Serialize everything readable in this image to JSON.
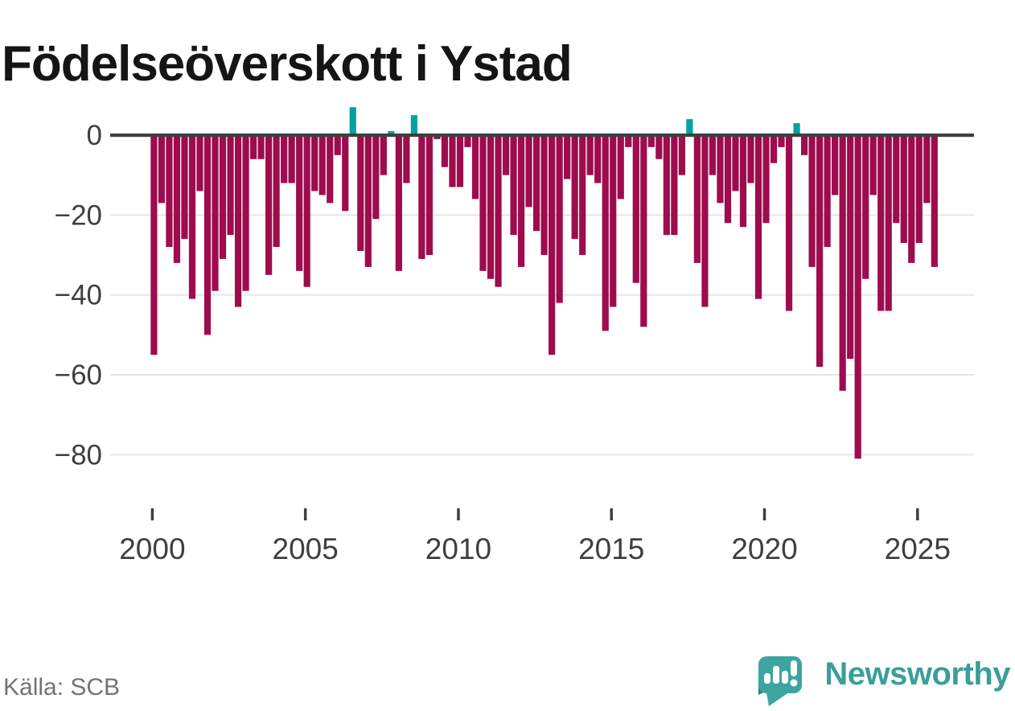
{
  "title": "Födelseöverskott i Ystad",
  "footer": {
    "source_label": "Källa: SCB"
  },
  "branding": {
    "wordmark": "Newsworthy",
    "logo_icon": "speech-bubble-barchart-icon"
  },
  "colors": {
    "negative_bar": "#9e0c4d",
    "positive_bar": "#00a2a0",
    "axis": "#3f3f3f",
    "gridline": "#e6e6e6",
    "tick_label": "#3f3f3f",
    "title_text": "#151515",
    "source_text": "#737378",
    "brand_teal": "#3a9e99",
    "brand_teal_dark": "#2e7f7b"
  },
  "chart_data": {
    "type": "bar",
    "title": "Födelseöverskott i Ystad",
    "xlabel": "",
    "ylabel": "",
    "frequency": "quarterly",
    "x_start": "2000Q1",
    "x_end": "2025Q3",
    "ylim": [
      -85,
      8
    ],
    "grid": true,
    "legend_position": "none",
    "ytick_labels": [
      "0",
      "−20",
      "−40",
      "−60",
      "−80"
    ],
    "yticks": [
      0,
      -20,
      -40,
      -60,
      -80
    ],
    "xtick_labels": [
      "2000",
      "2005",
      "2010",
      "2015",
      "2020",
      "2025"
    ],
    "xtick_years": [
      2000,
      2005,
      2010,
      2015,
      2020,
      2025
    ],
    "categories": [
      "2000Q1",
      "2000Q2",
      "2000Q3",
      "2000Q4",
      "2001Q1",
      "2001Q2",
      "2001Q3",
      "2001Q4",
      "2002Q1",
      "2002Q2",
      "2002Q3",
      "2002Q4",
      "2003Q1",
      "2003Q2",
      "2003Q3",
      "2003Q4",
      "2004Q1",
      "2004Q2",
      "2004Q3",
      "2004Q4",
      "2005Q1",
      "2005Q2",
      "2005Q3",
      "2005Q4",
      "2006Q1",
      "2006Q2",
      "2006Q3",
      "2006Q4",
      "2007Q1",
      "2007Q2",
      "2007Q3",
      "2007Q4",
      "2008Q1",
      "2008Q2",
      "2008Q3",
      "2008Q4",
      "2009Q1",
      "2009Q2",
      "2009Q3",
      "2009Q4",
      "2010Q1",
      "2010Q2",
      "2010Q3",
      "2010Q4",
      "2011Q1",
      "2011Q2",
      "2011Q3",
      "2011Q4",
      "2012Q1",
      "2012Q2",
      "2012Q3",
      "2012Q4",
      "2013Q1",
      "2013Q2",
      "2013Q3",
      "2013Q4",
      "2014Q1",
      "2014Q2",
      "2014Q3",
      "2014Q4",
      "2015Q1",
      "2015Q2",
      "2015Q3",
      "2015Q4",
      "2016Q1",
      "2016Q2",
      "2016Q3",
      "2016Q4",
      "2017Q1",
      "2017Q2",
      "2017Q3",
      "2017Q4",
      "2018Q1",
      "2018Q2",
      "2018Q3",
      "2018Q4",
      "2019Q1",
      "2019Q2",
      "2019Q3",
      "2019Q4",
      "2020Q1",
      "2020Q2",
      "2020Q3",
      "2020Q4",
      "2021Q1",
      "2021Q2",
      "2021Q3",
      "2021Q4",
      "2022Q1",
      "2022Q2",
      "2022Q3",
      "2022Q4",
      "2023Q1",
      "2023Q2",
      "2023Q3",
      "2023Q4",
      "2024Q1",
      "2024Q2",
      "2024Q3",
      "2024Q4",
      "2025Q1",
      "2025Q2",
      "2025Q3"
    ],
    "values": [
      -55,
      -17,
      -28,
      -32,
      -26,
      -41,
      -14,
      -50,
      -39,
      -31,
      -25,
      -43,
      -39,
      -6,
      -6,
      -35,
      -28,
      -12,
      -12,
      -34,
      -38,
      -14,
      -15,
      -17,
      -5,
      -19,
      7,
      -29,
      -33,
      -21,
      -10,
      1,
      -34,
      -12,
      5,
      -31,
      -30,
      -1,
      -8,
      -13,
      -13,
      -3,
      -16,
      -34,
      -36,
      -38,
      -10,
      -25,
      -33,
      -18,
      -24,
      -30,
      -55,
      -42,
      -11,
      -26,
      -30,
      -10,
      -12,
      -49,
      -43,
      -16,
      -3,
      -37,
      -48,
      -3,
      -6,
      -25,
      -25,
      -10,
      4,
      -32,
      -43,
      -10,
      -17,
      -22,
      -14,
      -23,
      -12,
      -41,
      -22,
      -7,
      -3,
      -44,
      3,
      -5,
      -33,
      -58,
      -28,
      -15,
      -64,
      -56,
      -81,
      -36,
      -15,
      -44,
      -44,
      -22,
      -27,
      -32,
      -27,
      -17,
      -33
    ]
  }
}
